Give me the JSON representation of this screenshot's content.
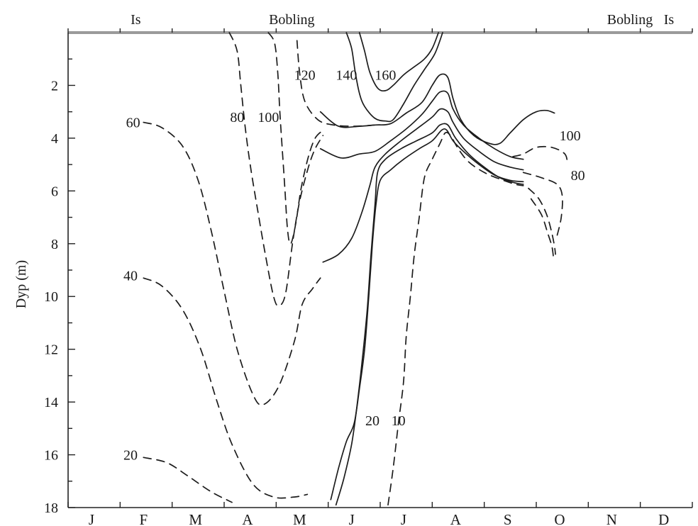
{
  "chart_data": {
    "type": "line",
    "title": "",
    "xlabel": "",
    "ylabel": "Dyp (m)",
    "y_inverted": true,
    "ylim": [
      0,
      18
    ],
    "yticks": [
      "2",
      "4",
      "6",
      "8",
      "10",
      "12",
      "14",
      "16",
      "18"
    ],
    "months": [
      "J",
      "F",
      "M",
      "A",
      "M",
      "J",
      "J",
      "A",
      "S",
      "O",
      "N",
      "D"
    ],
    "season_labels": [
      {
        "text": "Is",
        "month": 1.3
      },
      {
        "text": "Bobling",
        "month": 4.3
      },
      {
        "text": "Bobling",
        "month": 10.8
      },
      {
        "text": "Is",
        "month": 11.55
      }
    ],
    "contours": [
      {
        "label": "20",
        "style": "dashed",
        "label_at": [
          1.2,
          16.0
        ],
        "points": [
          [
            1.45,
            16.1
          ],
          [
            1.9,
            16.3
          ],
          [
            2.3,
            16.8
          ],
          [
            2.75,
            17.4
          ],
          [
            3.15,
            17.8
          ]
        ]
      },
      {
        "label": "40",
        "style": "dashed",
        "label_at": [
          1.2,
          9.2
        ],
        "points": [
          [
            1.45,
            9.3
          ],
          [
            1.8,
            9.6
          ],
          [
            2.2,
            10.5
          ],
          [
            2.55,
            12.0
          ],
          [
            2.85,
            13.9
          ],
          [
            3.15,
            15.6
          ],
          [
            3.55,
            17.1
          ],
          [
            3.95,
            17.6
          ],
          [
            4.35,
            17.6
          ],
          [
            4.6,
            17.5
          ]
        ]
      },
      {
        "label": "60",
        "style": "dashed",
        "label_at": [
          1.25,
          3.4
        ],
        "points": [
          [
            1.45,
            3.4
          ],
          [
            1.8,
            3.6
          ],
          [
            2.2,
            4.3
          ],
          [
            2.5,
            5.6
          ],
          [
            2.75,
            7.5
          ],
          [
            3.0,
            9.8
          ],
          [
            3.25,
            12.0
          ],
          [
            3.55,
            13.7
          ],
          [
            3.75,
            14.1
          ],
          [
            4.05,
            13.4
          ],
          [
            4.35,
            11.7
          ],
          [
            4.5,
            10.3
          ],
          [
            4.7,
            9.7
          ],
          [
            4.85,
            9.3
          ]
        ]
      },
      {
        "label": "80",
        "style": "dashed",
        "label_at": [
          3.25,
          3.2
        ],
        "points": [
          [
            3.1,
            0
          ],
          [
            3.25,
            0.7
          ],
          [
            3.32,
            2.0
          ],
          [
            3.4,
            3.5
          ],
          [
            3.5,
            5.0
          ],
          [
            3.65,
            6.8
          ],
          [
            3.8,
            8.5
          ],
          [
            3.95,
            10.0
          ],
          [
            4.05,
            10.35
          ],
          [
            4.18,
            9.9
          ],
          [
            4.32,
            7.9
          ],
          [
            4.45,
            6.4
          ],
          [
            4.62,
            5.1
          ],
          [
            4.75,
            4.4
          ],
          [
            4.9,
            3.9
          ]
        ]
      },
      {
        "label": "100",
        "style": "dashed",
        "label_at": [
          3.85,
          3.2
        ],
        "points": [
          [
            3.85,
            0
          ],
          [
            3.97,
            0.4
          ],
          [
            4.03,
            1.5
          ],
          [
            4.07,
            3.0
          ],
          [
            4.12,
            4.5
          ],
          [
            4.17,
            6.0
          ],
          [
            4.22,
            7.5
          ],
          [
            4.28,
            8.0
          ],
          [
            4.38,
            7.2
          ],
          [
            4.48,
            5.9
          ],
          [
            4.62,
            4.7
          ],
          [
            4.75,
            4.0
          ],
          [
            4.9,
            3.7
          ]
        ]
      },
      {
        "label": "120",
        "style": "dashed",
        "label_at": [
          4.55,
          1.6
        ],
        "points": [
          [
            4.4,
            0.3
          ],
          [
            4.45,
            1.5
          ],
          [
            4.55,
            2.6
          ],
          [
            4.8,
            3.3
          ],
          [
            5.1,
            3.5
          ],
          [
            5.5,
            3.55
          ],
          [
            5.9,
            3.5
          ]
        ]
      },
      {
        "label": "140",
        "style": "solid",
        "label_at": [
          5.35,
          1.6
        ],
        "points": [
          [
            5.35,
            0
          ],
          [
            5.45,
            0.6
          ],
          [
            5.52,
            1.5
          ],
          [
            5.6,
            2.3
          ],
          [
            5.7,
            2.8
          ],
          [
            5.9,
            3.25
          ],
          [
            6.1,
            3.35
          ],
          [
            6.25,
            3.3
          ],
          [
            6.45,
            2.7
          ],
          [
            6.65,
            2.0
          ],
          [
            6.85,
            1.4
          ],
          [
            7.05,
            0.8
          ],
          [
            7.2,
            0
          ]
        ]
      },
      {
        "label": "160",
        "style": "solid",
        "label_at": [
          6.1,
          1.6
        ],
        "points": [
          [
            5.6,
            0
          ],
          [
            5.7,
            0.7
          ],
          [
            5.8,
            1.5
          ],
          [
            5.95,
            2.1
          ],
          [
            6.1,
            2.2
          ],
          [
            6.25,
            2.0
          ],
          [
            6.45,
            1.6
          ],
          [
            6.65,
            1.3
          ],
          [
            6.85,
            1.0
          ],
          [
            7.0,
            0.6
          ],
          [
            7.12,
            0
          ]
        ]
      },
      {
        "label": "",
        "style": "solid",
        "label_at": null,
        "points": [
          [
            4.85,
            3.0
          ],
          [
            5.2,
            3.55
          ],
          [
            5.6,
            3.55
          ],
          [
            5.9,
            3.5
          ],
          [
            6.2,
            3.45
          ],
          [
            6.5,
            3.05
          ],
          [
            6.8,
            2.65
          ],
          [
            7.0,
            2.0
          ],
          [
            7.15,
            1.6
          ],
          [
            7.3,
            1.7
          ],
          [
            7.4,
            2.5
          ],
          [
            7.55,
            3.3
          ],
          [
            7.8,
            3.9
          ],
          [
            8.1,
            4.2
          ],
          [
            8.3,
            4.2
          ],
          [
            8.5,
            3.8
          ],
          [
            8.75,
            3.3
          ],
          [
            9.0,
            3.0
          ],
          [
            9.2,
            2.95
          ],
          [
            9.35,
            3.05
          ]
        ]
      },
      {
        "label": "",
        "style": "solid",
        "label_at": null,
        "points": [
          [
            4.85,
            4.4
          ],
          [
            5.25,
            4.75
          ],
          [
            5.6,
            4.6
          ],
          [
            5.9,
            4.5
          ],
          [
            6.2,
            4.1
          ],
          [
            6.5,
            3.65
          ],
          [
            6.8,
            3.1
          ],
          [
            7.0,
            2.6
          ],
          [
            7.15,
            2.25
          ],
          [
            7.3,
            2.3
          ],
          [
            7.4,
            2.9
          ],
          [
            7.6,
            3.5
          ],
          [
            7.9,
            4.0
          ],
          [
            8.2,
            4.4
          ],
          [
            8.5,
            4.7
          ],
          [
            8.75,
            4.8
          ]
        ]
      },
      {
        "label": "",
        "style": "solid",
        "label_at": null,
        "points": [
          [
            4.9,
            8.7
          ],
          [
            5.2,
            8.4
          ],
          [
            5.45,
            7.8
          ],
          [
            5.65,
            6.8
          ],
          [
            5.8,
            5.8
          ],
          [
            5.9,
            5.1
          ],
          [
            6.1,
            4.6
          ],
          [
            6.4,
            4.1
          ],
          [
            6.7,
            3.65
          ],
          [
            7.0,
            3.2
          ],
          [
            7.15,
            2.9
          ],
          [
            7.3,
            3.0
          ],
          [
            7.4,
            3.4
          ],
          [
            7.6,
            4.0
          ],
          [
            7.9,
            4.5
          ],
          [
            8.2,
            4.9
          ],
          [
            8.5,
            5.1
          ],
          [
            8.75,
            5.2
          ]
        ]
      },
      {
        "label": "20",
        "style": "solid",
        "label_at": [
          5.85,
          14.7
        ],
        "points": [
          [
            5.05,
            17.7
          ],
          [
            5.2,
            16.5
          ],
          [
            5.35,
            15.5
          ],
          [
            5.5,
            14.8
          ],
          [
            5.6,
            13.5
          ],
          [
            5.7,
            12.0
          ],
          [
            5.78,
            10.0
          ],
          [
            5.85,
            8.0
          ],
          [
            5.92,
            6.5
          ],
          [
            6.0,
            5.6
          ],
          [
            6.2,
            5.2
          ],
          [
            6.45,
            4.8
          ],
          [
            6.75,
            4.4
          ],
          [
            7.0,
            4.1
          ],
          [
            7.18,
            3.7
          ],
          [
            7.28,
            3.7
          ],
          [
            7.4,
            4.1
          ],
          [
            7.6,
            4.5
          ],
          [
            7.9,
            5.0
          ],
          [
            8.2,
            5.4
          ],
          [
            8.5,
            5.6
          ],
          [
            8.75,
            5.65
          ]
        ]
      },
      {
        "label": "",
        "style": "solid",
        "label_at": null,
        "points": [
          [
            5.15,
            17.9
          ],
          [
            5.3,
            16.9
          ],
          [
            5.45,
            15.6
          ],
          [
            5.55,
            14.2
          ],
          [
            5.65,
            12.5
          ],
          [
            5.75,
            10.5
          ],
          [
            5.82,
            8.5
          ],
          [
            5.9,
            6.5
          ],
          [
            5.95,
            5.3
          ],
          [
            6.1,
            4.8
          ],
          [
            6.4,
            4.4
          ],
          [
            6.7,
            4.1
          ],
          [
            7.0,
            3.8
          ],
          [
            7.15,
            3.5
          ],
          [
            7.3,
            3.5
          ],
          [
            7.45,
            4.0
          ],
          [
            7.7,
            4.6
          ],
          [
            8.0,
            5.1
          ],
          [
            8.3,
            5.5
          ],
          [
            8.6,
            5.7
          ],
          [
            8.75,
            5.75
          ]
        ]
      },
      {
        "label": "10",
        "style": "dashed",
        "label_at": [
          6.35,
          14.7
        ],
        "points": [
          [
            6.15,
            17.9
          ],
          [
            6.25,
            16.5
          ],
          [
            6.35,
            14.8
          ],
          [
            6.45,
            13.2
          ],
          [
            6.5,
            11.5
          ],
          [
            6.58,
            10.0
          ],
          [
            6.65,
            8.5
          ],
          [
            6.75,
            7.0
          ],
          [
            6.85,
            5.5
          ],
          [
            7.0,
            4.8
          ],
          [
            7.15,
            4.2
          ],
          [
            7.25,
            3.8
          ],
          [
            7.35,
            3.9
          ],
          [
            7.5,
            4.4
          ],
          [
            7.7,
            4.9
          ],
          [
            8.0,
            5.3
          ],
          [
            8.3,
            5.55
          ],
          [
            8.6,
            5.75
          ],
          [
            8.75,
            5.8
          ]
        ]
      },
      {
        "label": "100",
        "style": "dashed",
        "label_at": [
          9.65,
          3.9
        ],
        "points": [
          [
            8.55,
            4.7
          ],
          [
            8.75,
            4.6
          ],
          [
            9.0,
            4.35
          ],
          [
            9.3,
            4.35
          ],
          [
            9.55,
            4.6
          ],
          [
            9.6,
            5.0
          ]
        ]
      },
      {
        "label": "80",
        "style": "dashed",
        "label_at": [
          9.8,
          5.4
        ],
        "points": [
          [
            8.75,
            5.3
          ],
          [
            9.1,
            5.5
          ],
          [
            9.4,
            5.75
          ],
          [
            9.5,
            6.2
          ],
          [
            9.48,
            7.0
          ],
          [
            9.4,
            7.7
          ]
        ]
      },
      {
        "label": "",
        "style": "dashed",
        "label_at": null,
        "points": [
          [
            8.85,
            5.9
          ],
          [
            9.05,
            6.3
          ],
          [
            9.2,
            6.9
          ],
          [
            9.3,
            7.6
          ],
          [
            9.35,
            8.1
          ],
          [
            9.37,
            8.4
          ]
        ]
      },
      {
        "label": "",
        "style": "dashed",
        "label_at": null,
        "points": [
          [
            8.9,
            6.3
          ],
          [
            9.1,
            6.9
          ],
          [
            9.22,
            7.6
          ],
          [
            9.3,
            8.1
          ],
          [
            9.33,
            8.5
          ]
        ]
      }
    ]
  }
}
